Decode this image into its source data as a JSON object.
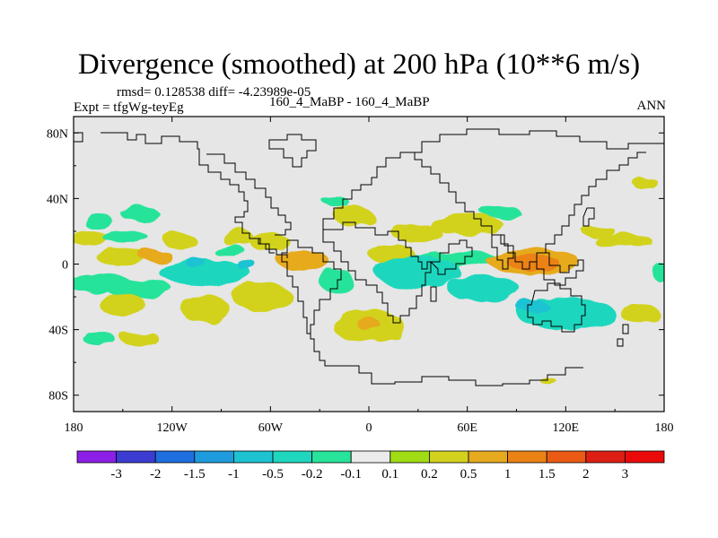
{
  "figure": {
    "title": "Divergence (smoothed) at 200 hPa (10**6 m/s)",
    "rmsd_line": "rmsd= 0.128538 diff= -4.23989e-05",
    "experiment_line": "Expt = tfgWg-teyEg",
    "case_line": "160_4_MaBP - 160_4_MaBP",
    "season": "ANN"
  },
  "map": {
    "projection": "cylindrical-equidistant",
    "lon_range": [
      -180,
      180
    ],
    "lat_range": [
      -90,
      90
    ],
    "lon_ticks": [
      {
        "value": -180,
        "label": "180"
      },
      {
        "value": -120,
        "label": "120W"
      },
      {
        "value": -60,
        "label": "60W"
      },
      {
        "value": 0,
        "label": "0"
      },
      {
        "value": 60,
        "label": "60E"
      },
      {
        "value": 120,
        "label": "120E"
      },
      {
        "value": 180,
        "label": "180"
      }
    ],
    "lat_ticks": [
      {
        "value": 80,
        "label": "80N"
      },
      {
        "value": 40,
        "label": "40N"
      },
      {
        "value": 0,
        "label": "0"
      },
      {
        "value": -40,
        "label": "40S"
      },
      {
        "value": -80,
        "label": "80S"
      }
    ],
    "background_color": "#e6e6e6"
  },
  "chart_data": {
    "type": "heatmap",
    "title": "Divergence (smoothed) at 200 hPa (10**6 m/s)",
    "variable": "200 hPa divergence difference",
    "contour_levels": [
      -3,
      -2,
      -1.5,
      -1,
      -0.5,
      -0.2,
      -0.1,
      0.1,
      0.2,
      0.5,
      1,
      1.5,
      2,
      3
    ],
    "colorbar_labels": [
      "-3",
      "-2",
      "-1.5",
      "-1",
      "-0.5",
      "-0.2",
      "-0.1",
      "0.1",
      "0.2",
      "0.5",
      "1",
      "1.5",
      "2",
      "3"
    ],
    "colors": [
      "#8c1fe6",
      "#3c3cd2",
      "#1e6ee0",
      "#1e9bdc",
      "#1ec3d2",
      "#1ed7be",
      "#28e39a",
      "#ebebeb",
      "#a0dc14",
      "#d2d21e",
      "#e6aa1e",
      "#eb8214",
      "#eb5a14",
      "#dc1e14",
      "#eb0a0a"
    ],
    "features": [
      {
        "lon": -170,
        "lat": 15,
        "rx": 12,
        "ry": 5,
        "level": 0.2
      },
      {
        "lon": -150,
        "lat": 4,
        "rx": 16,
        "ry": 5,
        "level": 0.2
      },
      {
        "lon": -130,
        "lat": 5,
        "rx": 10,
        "ry": 4,
        "level": 0.5
      },
      {
        "lon": -148,
        "lat": 16,
        "rx": 14,
        "ry": 4,
        "level": -0.2
      },
      {
        "lon": -165,
        "lat": 26,
        "rx": 9,
        "ry": 5,
        "level": -0.2
      },
      {
        "lon": -140,
        "lat": 31,
        "rx": 12,
        "ry": 4,
        "level": -0.2
      },
      {
        "lon": -163,
        "lat": -12,
        "rx": 20,
        "ry": 5,
        "level": -0.2
      },
      {
        "lon": -140,
        "lat": -15,
        "rx": 20,
        "ry": 6,
        "level": -0.2
      },
      {
        "lon": -100,
        "lat": -5,
        "rx": 28,
        "ry": 8,
        "level": -0.5
      },
      {
        "lon": -105,
        "lat": 0,
        "rx": 6,
        "ry": 3,
        "level": -1
      },
      {
        "lon": -75,
        "lat": 0,
        "rx": 6,
        "ry": 3,
        "level": -1
      },
      {
        "lon": -115,
        "lat": 14,
        "rx": 10,
        "ry": 5,
        "level": 0.2
      },
      {
        "lon": -80,
        "lat": 16,
        "rx": 10,
        "ry": 5,
        "level": 0.2
      },
      {
        "lon": -60,
        "lat": 13,
        "rx": 12,
        "ry": 6,
        "level": 0.2
      },
      {
        "lon": -65,
        "lat": -20,
        "rx": 18,
        "ry": 9,
        "level": 0.2
      },
      {
        "lon": -150,
        "lat": -25,
        "rx": 14,
        "ry": 7,
        "level": 0.2
      },
      {
        "lon": -100,
        "lat": -27,
        "rx": 15,
        "ry": 8,
        "level": 0.2
      },
      {
        "lon": -165,
        "lat": -45,
        "rx": 10,
        "ry": 4,
        "level": -0.2
      },
      {
        "lon": -140,
        "lat": -45,
        "rx": 12,
        "ry": 4,
        "level": 0.2
      },
      {
        "lon": -85,
        "lat": 8,
        "rx": 10,
        "ry": 3,
        "level": -0.2
      },
      {
        "lon": -40,
        "lat": 2,
        "rx": 16,
        "ry": 6,
        "level": 0.5
      },
      {
        "lon": -20,
        "lat": -10,
        "rx": 10,
        "ry": 8,
        "level": -0.2
      },
      {
        "lon": -10,
        "lat": 30,
        "rx": 12,
        "ry": 6,
        "level": 0.2
      },
      {
        "lon": 30,
        "lat": 18,
        "rx": 15,
        "ry": 6,
        "level": 0.2
      },
      {
        "lon": 15,
        "lat": 5,
        "rx": 14,
        "ry": 6,
        "level": 0.2
      },
      {
        "lon": 0,
        "lat": -38,
        "rx": 22,
        "ry": 10,
        "level": 0.2
      },
      {
        "lon": 0,
        "lat": -37,
        "rx": 7,
        "ry": 4,
        "level": 0.5
      },
      {
        "lon": 30,
        "lat": -5,
        "rx": 26,
        "ry": 10,
        "level": -0.5
      },
      {
        "lon": 70,
        "lat": -15,
        "rx": 22,
        "ry": 8,
        "level": -0.5
      },
      {
        "lon": 55,
        "lat": 3,
        "rx": 26,
        "ry": 5,
        "level": -0.2
      },
      {
        "lon": 60,
        "lat": 24,
        "rx": 22,
        "ry": 6,
        "level": 0.2
      },
      {
        "lon": 100,
        "lat": 2,
        "rx": 28,
        "ry": 8,
        "level": 0.5
      },
      {
        "lon": 100,
        "lat": 1,
        "rx": 16,
        "ry": 5,
        "level": 1
      },
      {
        "lon": 120,
        "lat": -30,
        "rx": 30,
        "ry": 10,
        "level": -0.5
      },
      {
        "lon": 100,
        "lat": -26,
        "rx": 10,
        "ry": 4,
        "level": -1
      },
      {
        "lon": 165,
        "lat": -30,
        "rx": 12,
        "ry": 6,
        "level": 0.2
      },
      {
        "lon": 155,
        "lat": 14,
        "rx": 18,
        "ry": 4,
        "level": 0.2
      },
      {
        "lon": 140,
        "lat": 20,
        "rx": 10,
        "ry": 4,
        "level": 0.2
      },
      {
        "lon": 80,
        "lat": 32,
        "rx": 12,
        "ry": 4,
        "level": -0.2
      },
      {
        "lon": -20,
        "lat": 38,
        "rx": 8,
        "ry": 3,
        "level": -0.2
      },
      {
        "lon": 168,
        "lat": 50,
        "rx": 8,
        "ry": 3,
        "level": 0.2
      },
      {
        "lon": 110,
        "lat": -72,
        "rx": 5,
        "ry": 2,
        "level": 0.2
      },
      {
        "lon": 178,
        "lat": -5,
        "rx": 5,
        "ry": 6,
        "level": -0.2
      }
    ]
  }
}
